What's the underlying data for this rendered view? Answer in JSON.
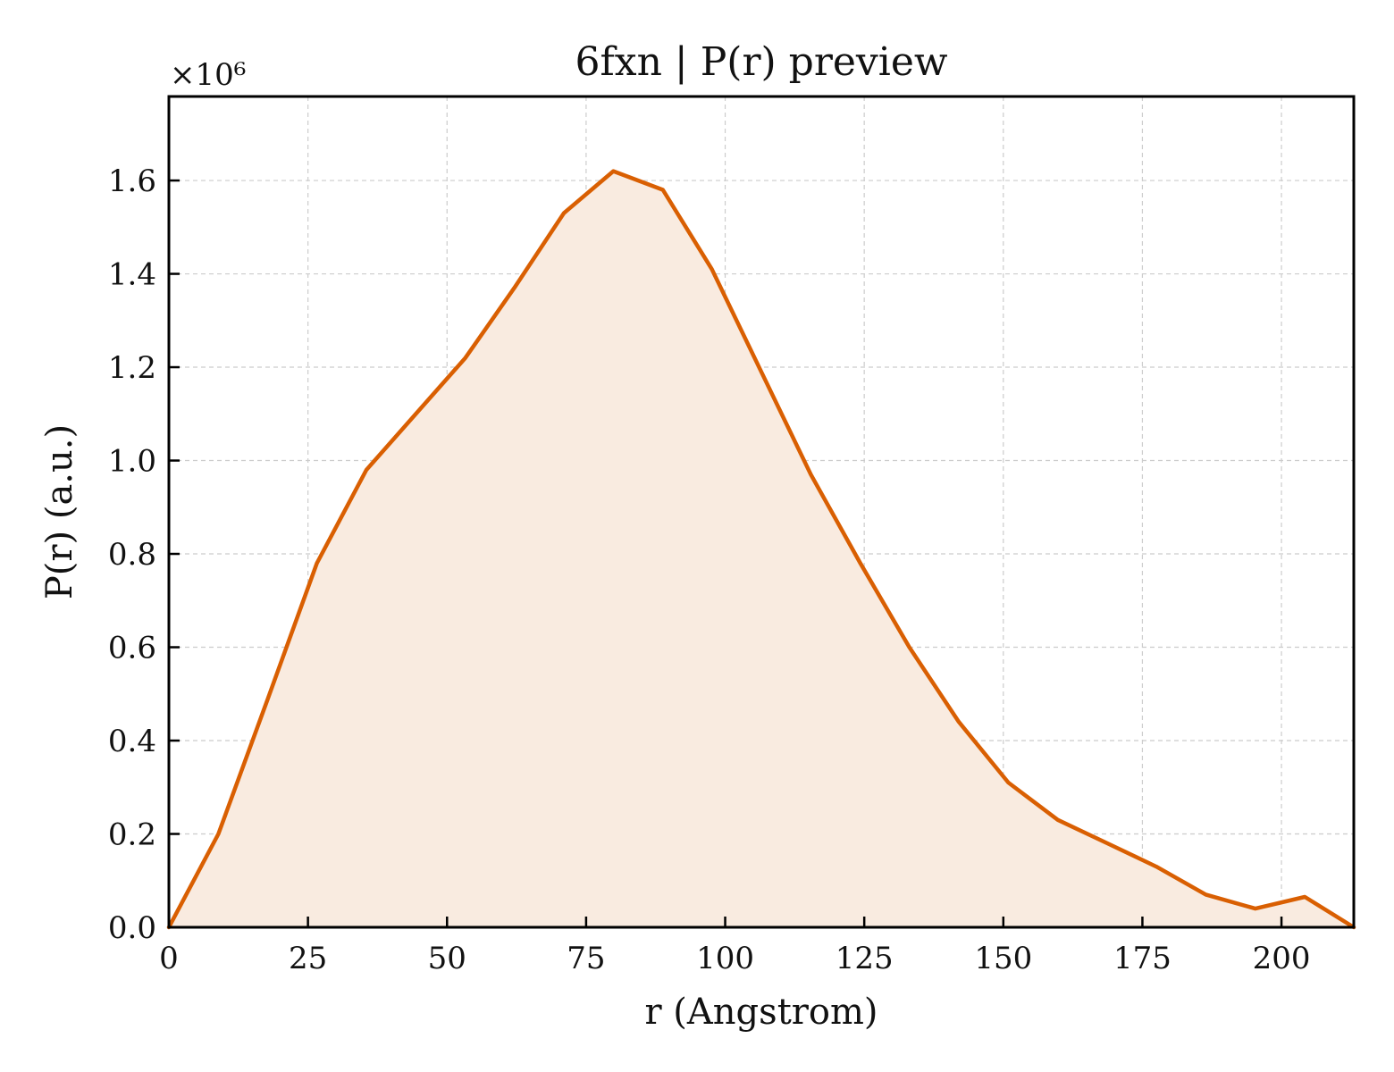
{
  "chart_data": {
    "type": "area",
    "title": "6fxn | P(r) preview",
    "xlabel": "r (Angstrom)",
    "ylabel": "P(r) (a.u.)",
    "y_multiplier_label": "×10⁶",
    "xlim": [
      0,
      213
    ],
    "ylim": [
      0,
      1.78
    ],
    "x_ticks": [
      0,
      25,
      50,
      75,
      100,
      125,
      150,
      175,
      200
    ],
    "x_tick_labels": [
      "0",
      "25",
      "50",
      "75",
      "100",
      "125",
      "150",
      "175",
      "200"
    ],
    "y_ticks": [
      0.0,
      0.2,
      0.4,
      0.6,
      0.8,
      1.0,
      1.2,
      1.4,
      1.6
    ],
    "y_tick_labels": [
      "0.0",
      "0.2",
      "0.4",
      "0.6",
      "0.8",
      "1.0",
      "1.2",
      "1.4",
      "1.6"
    ],
    "grid": true,
    "line_color": "#d95f02",
    "fill_color": "#f9ebe0",
    "series": [
      {
        "x": [
          0,
          8.9,
          17.8,
          26.6,
          35.5,
          44.4,
          53.3,
          62.1,
          71.0,
          79.9,
          88.8,
          97.6,
          106.5,
          115.4,
          124.3,
          133.1,
          142.0,
          150.9,
          159.8,
          168.7,
          177.5,
          186.4,
          195.3,
          204.2,
          213.0
        ],
        "y": [
          0.0,
          0.2,
          0.49,
          0.78,
          0.98,
          1.1,
          1.22,
          1.37,
          1.53,
          1.62,
          1.58,
          1.41,
          1.19,
          0.97,
          0.78,
          0.6,
          0.44,
          0.31,
          0.23,
          0.18,
          0.13,
          0.07,
          0.04,
          0.065,
          0.0
        ]
      }
    ]
  }
}
